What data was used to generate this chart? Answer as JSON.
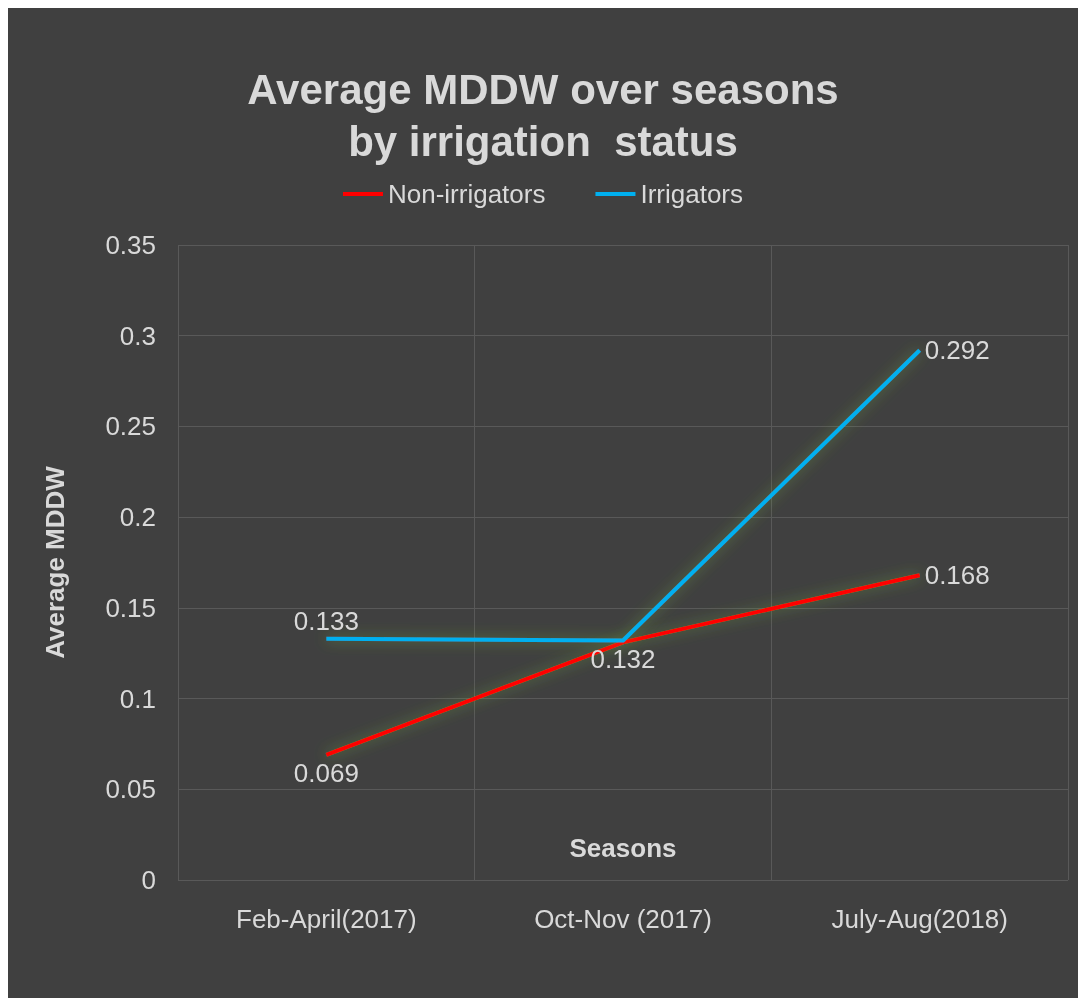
{
  "chart_data": {
    "type": "line",
    "title": "Average MDDW over seasons\nby irrigation  status",
    "xlabel": "Seasons",
    "ylabel": "Average MDDW",
    "categories": [
      "Feb-April(2017)",
      "Oct-Nov (2017)",
      "July-Aug(2018)"
    ],
    "series": [
      {
        "name": "Non-irrigators",
        "color": "#ff0000",
        "values": [
          0.069,
          0.131,
          0.168
        ],
        "value_labels": [
          "0.069",
          null,
          "0.168"
        ]
      },
      {
        "name": "Irrigators",
        "color": "#00b0f0",
        "values": [
          0.133,
          0.132,
          0.292
        ],
        "value_labels": [
          "0.133",
          "0.132",
          "0.292"
        ]
      }
    ],
    "ylim": [
      0,
      0.35
    ],
    "yticks": [
      0,
      0.05,
      0.1,
      0.15,
      0.2,
      0.25,
      0.3,
      0.35
    ],
    "grid": true,
    "legend": "top",
    "marker": "none"
  }
}
